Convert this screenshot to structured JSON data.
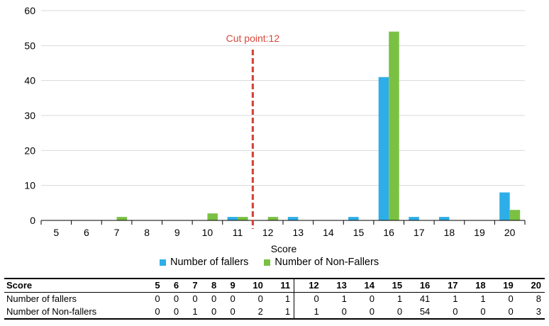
{
  "chart_data": {
    "type": "bar",
    "categories": [
      "5",
      "6",
      "7",
      "8",
      "9",
      "10",
      "11",
      "12",
      "13",
      "14",
      "15",
      "16",
      "17",
      "18",
      "19",
      "20"
    ],
    "series": [
      {
        "name": "Number of fallers",
        "values": [
          0,
          0,
          0,
          0,
          0,
          0,
          1,
          0,
          1,
          0,
          1,
          41,
          1,
          1,
          0,
          8
        ],
        "color": "#2eaee8"
      },
      {
        "name": "Number of Non-Fallers",
        "values": [
          0,
          0,
          1,
          0,
          0,
          2,
          1,
          1,
          0,
          0,
          0,
          54,
          0,
          0,
          0,
          3
        ],
        "color": "#7ac143"
      }
    ],
    "xlabel": "Score",
    "ylabel": "",
    "ylim": [
      0,
      60
    ],
    "yticks": [
      0,
      10,
      20,
      30,
      40,
      50,
      60
    ],
    "grid": true,
    "legend": "bottom",
    "annotation": {
      "text": "Cut point:12",
      "between_categories": [
        "11",
        "12"
      ],
      "color": "#d9463a"
    }
  },
  "table": {
    "header_label": "Score",
    "scores": [
      "5",
      "6",
      "7",
      "8",
      "9",
      "10",
      "11",
      "12",
      "13",
      "14",
      "15",
      "16",
      "17",
      "18",
      "19",
      "20"
    ],
    "rows": [
      {
        "label": "Number of fallers",
        "values": [
          "0",
          "0",
          "0",
          "0",
          "0",
          "0",
          "1",
          "0",
          "1",
          "0",
          "1",
          "41",
          "1",
          "1",
          "0",
          "8"
        ]
      },
      {
        "label": "Number of Non-fallers",
        "values": [
          "0",
          "0",
          "1",
          "0",
          "0",
          "2",
          "1",
          "1",
          "0",
          "0",
          "0",
          "54",
          "0",
          "0",
          "0",
          "3"
        ]
      }
    ]
  }
}
